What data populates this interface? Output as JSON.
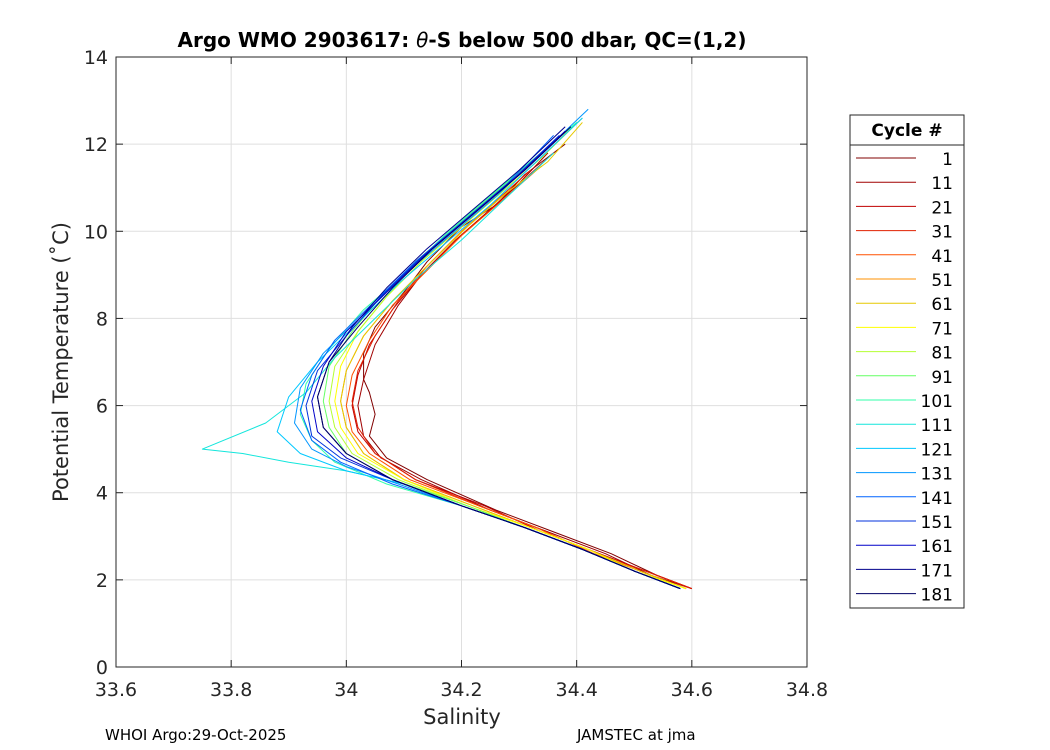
{
  "chart_data": {
    "type": "line",
    "title_prefix": "Argo WMO 2903617: ",
    "title_symbol": "θ",
    "title_suffix": "-S below 500 dbar,  QC=(1,2)",
    "xlabel": "Salinity",
    "ylabel": "Potential Temperature (˚C)",
    "xlim": [
      33.6,
      34.8
    ],
    "ylim": [
      0,
      14
    ],
    "xticks": [
      33.6,
      33.8,
      34,
      34.2,
      34.4,
      34.6,
      34.8
    ],
    "xtick_labels": [
      "33.6",
      "33.8",
      "34",
      "34.2",
      "34.4",
      "34.6",
      "34.8"
    ],
    "yticks": [
      0,
      2,
      4,
      6,
      8,
      10,
      12,
      14
    ],
    "ytick_labels": [
      "0",
      "2",
      "4",
      "6",
      "8",
      "10",
      "12",
      "14"
    ],
    "grid": true,
    "legend": {
      "title": "Cycle #",
      "placement": "right-outside",
      "entries": [
        {
          "label": "1",
          "color": "#800000"
        },
        {
          "label": "11",
          "color": "#a00000"
        },
        {
          "label": "21",
          "color": "#c00000"
        },
        {
          "label": "31",
          "color": "#e02000"
        },
        {
          "label": "41",
          "color": "#ff5000"
        },
        {
          "label": "51",
          "color": "#ff9000"
        },
        {
          "label": "61",
          "color": "#e6c800"
        },
        {
          "label": "71",
          "color": "#ffff00"
        },
        {
          "label": "81",
          "color": "#b4ff32"
        },
        {
          "label": "91",
          "color": "#64ff64"
        },
        {
          "label": "101",
          "color": "#32ffaa"
        },
        {
          "label": "111",
          "color": "#14e6dc"
        },
        {
          "label": "121",
          "color": "#00c8ff"
        },
        {
          "label": "131",
          "color": "#0096ff"
        },
        {
          "label": "141",
          "color": "#0064ff"
        },
        {
          "label": "151",
          "color": "#0032dc"
        },
        {
          "label": "161",
          "color": "#0000c8"
        },
        {
          "label": "171",
          "color": "#00008c"
        },
        {
          "label": "181",
          "color": "#000064"
        }
      ]
    },
    "series": [
      {
        "name": "1",
        "color": "#800000",
        "salinity": [
          34.6,
          34.54,
          34.46,
          34.36,
          34.26,
          34.14,
          34.07,
          34.04,
          34.05,
          34.04,
          34.03,
          34.03,
          34.05,
          34.1,
          34.14,
          34.2,
          34.26,
          34.31,
          34.38
        ],
        "theta": [
          1.8,
          2.1,
          2.6,
          3.1,
          3.6,
          4.3,
          4.8,
          5.3,
          5.8,
          6.3,
          6.6,
          7.2,
          7.8,
          8.6,
          9.3,
          10.1,
          10.6,
          11.3,
          12.0
        ]
      },
      {
        "name": "11",
        "color": "#a00000",
        "salinity": [
          34.6,
          34.53,
          34.45,
          34.35,
          34.25,
          34.13,
          34.06,
          34.03,
          34.02,
          34.03,
          34.05,
          34.09,
          34.13,
          34.19,
          34.25,
          34.3,
          34.35
        ],
        "theta": [
          1.8,
          2.1,
          2.6,
          3.1,
          3.6,
          4.3,
          4.8,
          5.3,
          6.0,
          6.6,
          7.4,
          8.3,
          9.0,
          9.8,
          10.5,
          11.1,
          11.8
        ]
      },
      {
        "name": "21",
        "color": "#c00000",
        "salinity": [
          34.6,
          34.52,
          34.44,
          34.34,
          34.24,
          34.12,
          34.05,
          34.02,
          34.01,
          34.02,
          34.04,
          34.08,
          34.13,
          34.19,
          34.25,
          34.31,
          34.36
        ],
        "theta": [
          1.8,
          2.2,
          2.6,
          3.1,
          3.7,
          4.3,
          4.9,
          5.4,
          6.0,
          6.7,
          7.4,
          8.2,
          9.0,
          9.8,
          10.5,
          11.2,
          11.8
        ]
      },
      {
        "name": "31",
        "color": "#e02000",
        "salinity": [
          34.6,
          34.52,
          34.43,
          34.33,
          34.23,
          34.12,
          34.05,
          34.02,
          34.01,
          34.02,
          34.05,
          34.09,
          34.14,
          34.2,
          34.26,
          34.32
        ],
        "theta": [
          1.8,
          2.2,
          2.6,
          3.2,
          3.7,
          4.3,
          4.9,
          5.5,
          6.1,
          6.8,
          7.6,
          8.4,
          9.2,
          10.0,
          10.7,
          11.4
        ]
      },
      {
        "name": "41",
        "color": "#ff5000",
        "salinity": [
          34.59,
          34.51,
          34.43,
          34.33,
          34.23,
          34.11,
          34.04,
          34.01,
          34.0,
          34.01,
          34.04,
          34.08,
          34.14,
          34.2,
          34.27,
          34.33
        ],
        "theta": [
          1.8,
          2.2,
          2.6,
          3.2,
          3.7,
          4.3,
          4.9,
          5.4,
          6.0,
          6.7,
          7.5,
          8.3,
          9.1,
          9.9,
          10.7,
          11.4
        ]
      },
      {
        "name": "51",
        "color": "#ff9000",
        "salinity": [
          34.59,
          34.51,
          34.42,
          34.32,
          34.22,
          34.1,
          34.03,
          34.0,
          33.99,
          34.0,
          34.03,
          34.08,
          34.14,
          34.2,
          34.27,
          34.34
        ],
        "theta": [
          1.8,
          2.2,
          2.7,
          3.2,
          3.7,
          4.3,
          4.9,
          5.5,
          6.1,
          6.8,
          7.6,
          8.4,
          9.2,
          10.0,
          10.8,
          11.5
        ]
      },
      {
        "name": "61",
        "color": "#e6c800",
        "salinity": [
          34.59,
          34.51,
          34.42,
          34.32,
          34.22,
          34.1,
          34.03,
          34.0,
          33.99,
          34.0,
          34.03,
          34.08,
          34.14,
          34.21,
          34.28,
          34.35,
          34.41
        ],
        "theta": [
          1.8,
          2.2,
          2.7,
          3.2,
          3.7,
          4.3,
          4.9,
          5.5,
          6.1,
          6.8,
          7.6,
          8.4,
          9.2,
          10.1,
          10.9,
          11.6,
          12.5
        ]
      },
      {
        "name": "71",
        "color": "#ffff00",
        "salinity": [
          34.59,
          34.5,
          34.42,
          34.32,
          34.21,
          34.1,
          34.02,
          33.99,
          33.98,
          33.99,
          34.02,
          34.07,
          34.13,
          34.2,
          34.27,
          34.34,
          34.4
        ],
        "theta": [
          1.8,
          2.2,
          2.7,
          3.2,
          3.7,
          4.3,
          4.9,
          5.5,
          6.1,
          6.9,
          7.7,
          8.5,
          9.3,
          10.1,
          10.9,
          11.7,
          12.5
        ]
      },
      {
        "name": "81",
        "color": "#b4ff32",
        "salinity": [
          34.58,
          34.5,
          34.41,
          34.31,
          34.21,
          34.09,
          34.01,
          33.98,
          33.97,
          33.98,
          34.02,
          34.07,
          34.13,
          34.2,
          34.27,
          34.34,
          34.41
        ],
        "theta": [
          1.8,
          2.2,
          2.7,
          3.2,
          3.7,
          4.3,
          4.9,
          5.5,
          6.1,
          6.9,
          7.7,
          8.5,
          9.3,
          10.1,
          10.9,
          11.7,
          12.6
        ]
      },
      {
        "name": "91",
        "color": "#64ff64",
        "salinity": [
          34.58,
          34.5,
          34.41,
          34.31,
          34.21,
          34.08,
          34.0,
          33.97,
          33.96,
          33.97,
          34.01,
          34.06,
          34.12,
          34.19,
          34.26,
          34.33,
          34.4
        ],
        "theta": [
          1.8,
          2.2,
          2.7,
          3.2,
          3.7,
          4.3,
          4.9,
          5.5,
          6.1,
          6.9,
          7.7,
          8.5,
          9.3,
          10.1,
          10.9,
          11.7,
          12.5
        ]
      },
      {
        "name": "101",
        "color": "#32ffaa",
        "salinity": [
          34.58,
          34.5,
          34.41,
          34.31,
          34.2,
          34.07,
          33.98,
          33.94,
          33.92,
          33.93,
          33.97,
          34.03,
          34.1,
          34.17,
          34.24,
          34.32,
          34.4
        ],
        "theta": [
          1.8,
          2.2,
          2.7,
          3.2,
          3.7,
          4.2,
          4.7,
          5.2,
          5.8,
          6.5,
          7.3,
          8.2,
          9.0,
          9.9,
          10.7,
          11.6,
          12.5
        ]
      },
      {
        "name": "111",
        "color": "#14e6dc",
        "salinity": [
          34.58,
          34.5,
          34.41,
          34.31,
          34.2,
          34.1,
          34.0,
          33.9,
          33.82,
          33.75,
          33.86,
          33.93,
          33.98,
          34.05,
          34.12,
          34.2,
          34.28,
          34.36
        ],
        "theta": [
          1.8,
          2.2,
          2.7,
          3.2,
          3.7,
          4.2,
          4.5,
          4.7,
          4.9,
          5.0,
          5.6,
          6.3,
          7.1,
          8.0,
          8.9,
          9.8,
          10.8,
          11.8
        ]
      },
      {
        "name": "121",
        "color": "#00c8ff",
        "salinity": [
          34.58,
          34.5,
          34.41,
          34.31,
          34.2,
          34.1,
          34.0,
          33.92,
          33.88,
          33.9,
          33.95,
          34.02,
          34.09,
          34.17,
          34.25,
          34.33,
          34.41
        ],
        "theta": [
          1.8,
          2.2,
          2.7,
          3.2,
          3.7,
          4.2,
          4.5,
          4.9,
          5.4,
          6.2,
          7.0,
          7.9,
          8.8,
          9.7,
          10.6,
          11.6,
          12.6
        ]
      },
      {
        "name": "131",
        "color": "#0096ff",
        "salinity": [
          34.58,
          34.5,
          34.41,
          34.31,
          34.2,
          34.09,
          34.0,
          33.94,
          33.91,
          33.92,
          33.96,
          34.03,
          34.1,
          34.18,
          34.26,
          34.34,
          34.42
        ],
        "theta": [
          1.8,
          2.2,
          2.7,
          3.2,
          3.7,
          4.2,
          4.6,
          5.0,
          5.6,
          6.4,
          7.2,
          8.1,
          9.0,
          9.9,
          10.8,
          11.8,
          12.8
        ]
      },
      {
        "name": "141",
        "color": "#0064ff",
        "salinity": [
          34.58,
          34.5,
          34.41,
          34.31,
          34.2,
          34.08,
          33.99,
          33.94,
          33.92,
          33.94,
          33.98,
          34.05,
          34.12,
          34.2,
          34.28,
          34.36
        ],
        "theta": [
          1.8,
          2.2,
          2.7,
          3.2,
          3.7,
          4.2,
          4.7,
          5.2,
          5.9,
          6.7,
          7.5,
          8.4,
          9.3,
          10.2,
          11.1,
          12.2
        ]
      },
      {
        "name": "151",
        "color": "#0032dc",
        "salinity": [
          34.58,
          34.5,
          34.41,
          34.31,
          34.2,
          34.08,
          33.99,
          33.94,
          33.93,
          33.95,
          34.0,
          34.06,
          34.13,
          34.21,
          34.29,
          34.37
        ],
        "theta": [
          1.8,
          2.2,
          2.7,
          3.2,
          3.7,
          4.3,
          4.8,
          5.3,
          6.0,
          6.8,
          7.6,
          8.5,
          9.4,
          10.3,
          11.2,
          12.2
        ]
      },
      {
        "name": "161",
        "color": "#0000c8",
        "salinity": [
          34.58,
          34.5,
          34.41,
          34.31,
          34.2,
          34.08,
          34.0,
          33.95,
          33.94,
          33.96,
          34.0,
          34.07,
          34.14,
          34.22,
          34.3,
          34.38
        ],
        "theta": [
          1.8,
          2.2,
          2.7,
          3.2,
          3.7,
          4.3,
          4.8,
          5.4,
          6.1,
          6.9,
          7.7,
          8.6,
          9.5,
          10.4,
          11.3,
          12.3
        ]
      },
      {
        "name": "171",
        "color": "#00008c",
        "salinity": [
          34.58,
          34.5,
          34.41,
          34.31,
          34.2,
          34.08,
          34.0,
          33.96,
          33.95,
          33.97,
          34.01,
          34.07,
          34.14,
          34.22,
          34.3,
          34.38
        ],
        "theta": [
          1.8,
          2.2,
          2.7,
          3.2,
          3.7,
          4.3,
          4.9,
          5.5,
          6.2,
          7.0,
          7.8,
          8.7,
          9.6,
          10.5,
          11.4,
          12.4
        ]
      },
      {
        "name": "181",
        "color": "#000064",
        "salinity": [
          34.58,
          34.5,
          34.41,
          34.31,
          34.2,
          34.08,
          34.0,
          33.96,
          33.95,
          33.97,
          34.02,
          34.08,
          34.15,
          34.23,
          34.31,
          34.39
        ],
        "theta": [
          1.8,
          2.2,
          2.7,
          3.2,
          3.7,
          4.3,
          4.9,
          5.5,
          6.2,
          7.0,
          7.8,
          8.7,
          9.6,
          10.5,
          11.4,
          12.4
        ]
      }
    ]
  },
  "footer": {
    "left": "WHOI Argo:29-Oct-2025",
    "right": "JAMSTEC at jma"
  }
}
